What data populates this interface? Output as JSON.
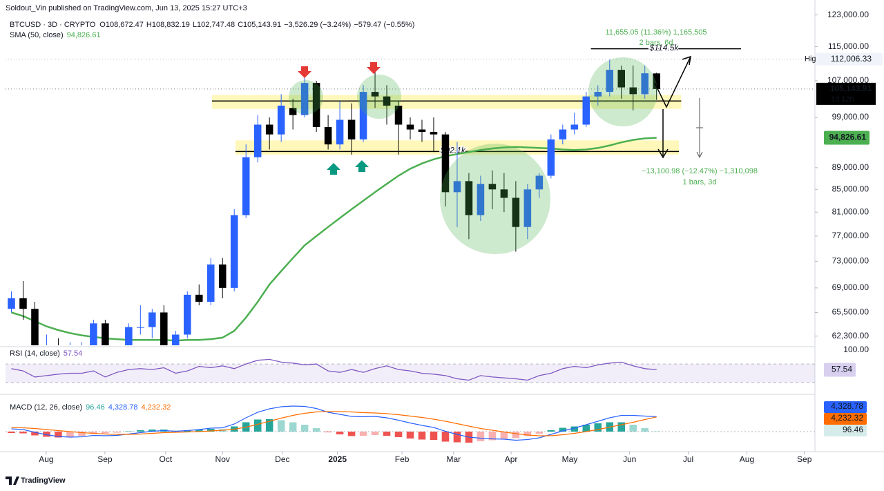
{
  "header": {
    "publisher": "Soldout_Vin published on TradingView.com, Jun 13, 2025 15:27 UTC+3",
    "symbol": "BTCUSD · 3D · CRYPTO",
    "ohlc": [
      "O108,672.47",
      "H108,832.19",
      "L102,747.48",
      "C105,143.91"
    ],
    "change": [
      "−3,526.29 (−3.24%)",
      "−579.47 (−0.55%)"
    ],
    "brand": "TradingView"
  },
  "chart_data": {
    "type": "candlestick",
    "log": true,
    "grid": false,
    "up_color": "#2962ff",
    "down_color": "#000000",
    "ylim": [
      61100,
      124200
    ],
    "xlim": [
      0,
      69
    ],
    "yticks": [
      {
        "value": 123000,
        "label": "123,000.00"
      },
      {
        "value": 115000,
        "label": "115,000.00"
      },
      {
        "value": 107000,
        "label": "107,000.00"
      },
      {
        "value": 99000,
        "label": "99,000.00"
      },
      {
        "value": 89000,
        "label": "89,000.00"
      },
      {
        "value": 85000,
        "label": "85,000.00"
      },
      {
        "value": 81000,
        "label": "81,000.00"
      },
      {
        "value": 77000,
        "label": "77,000.00"
      },
      {
        "value": 73000,
        "label": "73,000.00"
      },
      {
        "value": 69000,
        "label": "69,000.00"
      },
      {
        "value": 65500,
        "label": "65,500.00"
      },
      {
        "value": 62300,
        "label": "62,300.00"
      }
    ],
    "xticks": [
      {
        "value": 3.47,
        "label": "Aug"
      },
      {
        "value": 8.47,
        "label": "Sep"
      },
      {
        "value": 13.65,
        "label": "Oct"
      },
      {
        "value": 18.5,
        "label": "Nov"
      },
      {
        "value": 23.6,
        "label": "Dec"
      },
      {
        "value": 28.3,
        "label": "2025"
      },
      {
        "value": 33.8,
        "label": "Feb"
      },
      {
        "value": 38.2,
        "label": "Mar"
      },
      {
        "value": 43.1,
        "label": "Apr"
      },
      {
        "value": 48.1,
        "label": "May"
      },
      {
        "value": 53.2,
        "label": "Jun"
      },
      {
        "value": 58.2,
        "label": "Jul"
      },
      {
        "value": 63.2,
        "label": "Aug"
      },
      {
        "value": 68.1,
        "label": "Sep"
      }
    ],
    "candles": [
      [
        66000,
        68500,
        65500,
        67500
      ],
      [
        67500,
        70000,
        64500,
        66000
      ],
      [
        66000,
        67000,
        53500,
        58000
      ],
      [
        58000,
        62500,
        56000,
        60500
      ],
      [
        60500,
        62000,
        57500,
        59000
      ],
      [
        59000,
        61500,
        58000,
        59500
      ],
      [
        59000,
        61500,
        57500,
        60000
      ],
      [
        60000,
        64500,
        58500,
        64000
      ],
      [
        64000,
        64500,
        55500,
        57000
      ],
      [
        57000,
        60500,
        56500,
        60000
      ],
      [
        60000,
        64000,
        59500,
        63500
      ],
      [
        63500,
        66500,
        62500,
        63500
      ],
      [
        63500,
        66000,
        62000,
        65500
      ],
      [
        65500,
        66500,
        60500,
        61000
      ],
      [
        61000,
        63000,
        60000,
        62500
      ],
      [
        62500,
        68500,
        62000,
        68000
      ],
      [
        68000,
        69500,
        66500,
        67000
      ],
      [
        67000,
        73500,
        66500,
        72500
      ],
      [
        72500,
        73500,
        67500,
        69000
      ],
      [
        69000,
        81500,
        68500,
        80500
      ],
      [
        80500,
        93500,
        80000,
        91000
      ],
      [
        91000,
        99500,
        90000,
        97500
      ],
      [
        97500,
        99000,
        92500,
        95500
      ],
      [
        95500,
        104000,
        94000,
        101500
      ],
      [
        101000,
        103000,
        96500,
        99500
      ],
      [
        99500,
        108300,
        99000,
        106500
      ],
      [
        106500,
        107000,
        96000,
        97000
      ],
      [
        97000,
        99500,
        92500,
        93500
      ],
      [
        93500,
        102500,
        92500,
        98500
      ],
      [
        98500,
        102000,
        91500,
        94500
      ],
      [
        94500,
        106000,
        94000,
        104500
      ],
      [
        104500,
        109500,
        101000,
        103500
      ],
      [
        103500,
        106000,
        97500,
        101500
      ],
      [
        101500,
        102500,
        91500,
        97500
      ],
      [
        97500,
        99000,
        94500,
        96500
      ],
      [
        96500,
        98500,
        94000,
        96000
      ],
      [
        96000,
        99000,
        92000,
        95500
      ],
      [
        95500,
        96000,
        82000,
        84500
      ],
      [
        84500,
        94000,
        78500,
        86500
      ],
      [
        86500,
        88000,
        76500,
        80500
      ],
      [
        80500,
        87500,
        79500,
        86000
      ],
      [
        86000,
        88500,
        81500,
        85000
      ],
      [
        85000,
        88000,
        81000,
        83500
      ],
      [
        83500,
        86500,
        74500,
        78500
      ],
      [
        78500,
        86000,
        76500,
        85000
      ],
      [
        85000,
        88000,
        83500,
        87500
      ],
      [
        87500,
        95500,
        87000,
        94500
      ],
      [
        94500,
        97500,
        93500,
        96500
      ],
      [
        96500,
        100000,
        95500,
        97500
      ],
      [
        97500,
        104500,
        97000,
        103500
      ],
      [
        103500,
        106000,
        101500,
        104500
      ],
      [
        104500,
        111900,
        103500,
        109500
      ],
      [
        109500,
        110500,
        103000,
        105500
      ],
      [
        105500,
        110500,
        100500,
        104000
      ],
      [
        104000,
        110500,
        103000,
        108700
      ],
      [
        108672.47,
        108832.19,
        102747.48,
        105143.91
      ]
    ],
    "sma": {
      "name": "SMA (50, close)",
      "color": "#4caf50",
      "value_label": "94,826.61",
      "values": [
        65500,
        65000,
        64300,
        63600,
        63100,
        62700,
        62400,
        62200,
        62000,
        61900,
        61800,
        61800,
        61800,
        61800,
        61700,
        61800,
        61800,
        61900,
        62100,
        63000,
        64800,
        67000,
        69500,
        71500,
        73500,
        75500,
        77000,
        78500,
        80000,
        81500,
        83000,
        84500,
        86000,
        87500,
        88800,
        89800,
        90600,
        91200,
        91600,
        92000,
        92400,
        92700,
        92900,
        93000,
        92900,
        92800,
        92700,
        92500,
        92400,
        92500,
        92800,
        93300,
        93900,
        94400,
        94700,
        94826.61
      ]
    },
    "price_labels": [
      {
        "value": 112006.33,
        "label": "112,006.33",
        "tag": "High"
      },
      {
        "value": 105143.91,
        "label": "105,143.91",
        "tag": "1d 12h"
      }
    ],
    "zones": [
      [
        100800,
        103800
      ],
      [
        91500,
        94300
      ]
    ],
    "levels": [
      {
        "value": 102500
      },
      {
        "value": 92100,
        "label": "$92.1k"
      },
      {
        "value": 114500,
        "label": "$114.5k"
      }
    ],
    "measures": [
      {
        "lines": [
          "11,655.05 (11.36%) 1,165,505",
          "2 bars, 6d"
        ]
      },
      {
        "lines": [
          "−13,100.98 (−12.47%) −1,310,098",
          "1 bars, 3d"
        ]
      }
    ],
    "rsi": {
      "name": "RSI (14, close)",
      "color": "#7e57c2",
      "value_label": "57.54",
      "ylim": [
        0,
        100
      ],
      "band": [
        30,
        70
      ],
      "yticks": [
        {
          "value": 100,
          "label": "100.00"
        }
      ],
      "values": [
        60,
        55,
        42,
        45,
        48,
        50,
        50,
        55,
        42,
        52,
        58,
        60,
        58,
        62,
        50,
        55,
        65,
        62,
        66,
        60,
        70,
        78,
        80,
        74,
        72,
        68,
        70,
        55,
        52,
        58,
        52,
        60,
        66,
        58,
        55,
        50,
        48,
        45,
        38,
        35,
        45,
        42,
        40,
        38,
        35,
        45,
        50,
        60,
        65,
        62,
        68,
        72,
        74,
        66,
        60,
        57.54
      ]
    },
    "macd": {
      "name": "MACD (12, 26, close)",
      "ylim": [
        -5000,
        10000
      ],
      "labels": [
        "96.46",
        "4,328.78",
        "4,232.32"
      ],
      "macd": {
        "color": "#2962ff",
        "values": [
          800,
          600,
          -200,
          -900,
          -1400,
          -1600,
          -1500,
          -1100,
          -1200,
          -1100,
          -700,
          -300,
          100,
          300,
          100,
          300,
          600,
          1000,
          1100,
          2200,
          4000,
          5600,
          6600,
          7200,
          7400,
          7300,
          6700,
          5600,
          5000,
          4400,
          4300,
          4400,
          4000,
          3300,
          2500,
          1800,
          1200,
          100,
          -800,
          -1600,
          -1900,
          -2100,
          -2200,
          -2500,
          -2300,
          -1800,
          -800,
          200,
          1000,
          2000,
          3000,
          4000,
          4700,
          4700,
          4500,
          4328.78
        ]
      },
      "signal": {
        "color": "#ff6d00",
        "values": [
          1200,
          1100,
          900,
          600,
          300,
          0,
          -300,
          -500,
          -700,
          -800,
          -800,
          -700,
          -500,
          -300,
          -200,
          -100,
          0,
          200,
          400,
          700,
          1300,
          2100,
          3000,
          3900,
          4700,
          5300,
          5700,
          5800,
          5800,
          5700,
          5500,
          5400,
          5200,
          4900,
          4500,
          4100,
          3600,
          3000,
          2300,
          1600,
          900,
          400,
          -100,
          -600,
          -1000,
          -1200,
          -1200,
          -900,
          -500,
          0,
          600,
          1300,
          2000,
          2700,
          3500,
          4232.32
        ]
      },
      "hist": {
        "up_color": "#26a69a",
        "down_color": "#ef5350",
        "values": [
          -400,
          -500,
          -1100,
          -1500,
          -1700,
          -1600,
          -1200,
          -600,
          -500,
          -300,
          100,
          400,
          600,
          600,
          300,
          400,
          600,
          800,
          700,
          1500,
          2700,
          3500,
          3600,
          3300,
          2700,
          2000,
          1000,
          -200,
          -800,
          -1300,
          -1200,
          -1000,
          -1200,
          -1600,
          -2000,
          -2300,
          -2400,
          -2900,
          -3100,
          -3200,
          -2800,
          -2500,
          -2100,
          -1900,
          -1300,
          -600,
          400,
          1100,
          1500,
          2000,
          2400,
          2700,
          2700,
          2000,
          1000,
          96.46
        ]
      }
    }
  }
}
